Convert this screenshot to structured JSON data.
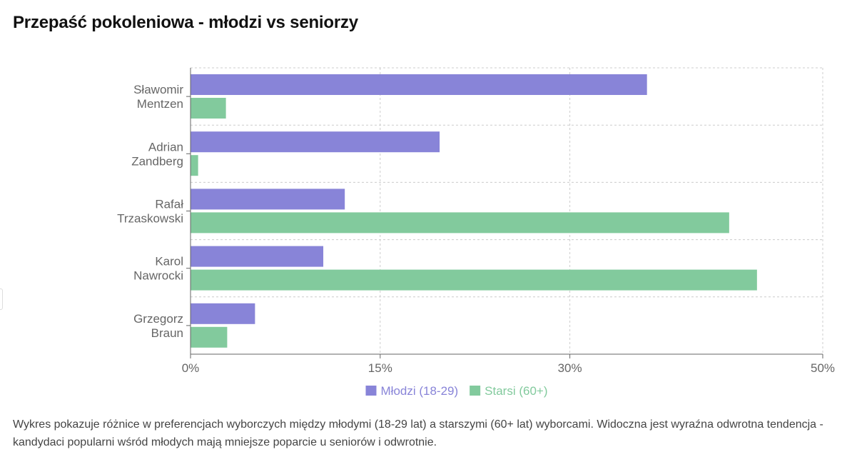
{
  "title": "Przepaść pokoleniowa - młodzi vs seniorzy",
  "description": "Wykres pokazuje różnice w preferencjach wyborczych między młodymi (18-29 lat) a starszymi (60+ lat) wyborcami. Widoczna jest wyraźna odwrotna tendencja - kandydaci popularni wśród młodych mają mniejsze poparcie u seniorów i odwrotnie.",
  "chart_data": {
    "type": "bar",
    "orientation": "horizontal",
    "categories": [
      [
        "Sławomir",
        "Mentzen"
      ],
      [
        "Adrian",
        "Zandberg"
      ],
      [
        "Rafał",
        "Trzaskowski"
      ],
      [
        "Karol",
        "Nawrocki"
      ],
      [
        "Grzegorz",
        "Braun"
      ]
    ],
    "series": [
      {
        "name": "Młodzi (18-29)",
        "color": "#8884d8",
        "values": [
          36.1,
          19.7,
          12.2,
          10.5,
          5.1
        ]
      },
      {
        "name": "Starsi (60+)",
        "color": "#82ca9d",
        "values": [
          2.8,
          0.6,
          42.6,
          44.8,
          2.9
        ]
      }
    ],
    "xlim": [
      0,
      50
    ],
    "xticks": [
      0,
      15,
      30,
      50
    ],
    "tick_suffix": "%",
    "grid": true,
    "legend_position": "bottom"
  },
  "colors": {
    "axis": "#666666",
    "grid": "#cccccc",
    "tick_text": "#666666"
  }
}
